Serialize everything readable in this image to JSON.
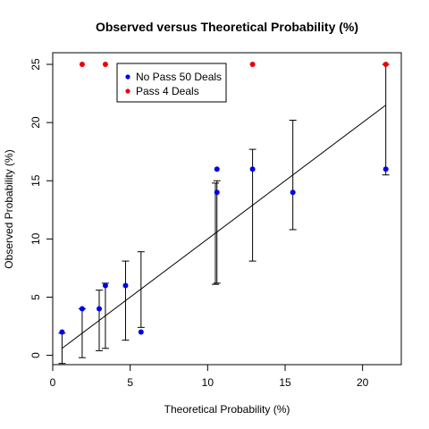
{
  "chart_data": {
    "type": "scatter",
    "title": "Observed versus Theoretical Probability (%)",
    "xlabel": "Theoretical Probability (%)",
    "ylabel": "Observed Probability (%)",
    "xlim": [
      0,
      22.5
    ],
    "ylim": [
      -0.8,
      26
    ],
    "xticks": [
      0,
      5,
      10,
      15,
      20
    ],
    "yticks": [
      0,
      5,
      10,
      15,
      20,
      25
    ],
    "grid": false,
    "legend": {
      "placement": "top-left",
      "entries": [
        {
          "name": "No Pass 50 Deals",
          "color": "#0000ee"
        },
        {
          "name": "Pass 4 Deals",
          "color": "#ee0000"
        }
      ]
    },
    "series": [
      {
        "name": "No Pass 50 Deals",
        "color": "#0000ee",
        "points": [
          {
            "x": 0.6,
            "y": 2
          },
          {
            "x": 1.9,
            "y": 4
          },
          {
            "x": 3.0,
            "y": 4
          },
          {
            "x": 3.4,
            "y": 6
          },
          {
            "x": 4.7,
            "y": 6
          },
          {
            "x": 5.7,
            "y": 2
          },
          {
            "x": 10.6,
            "y": 16
          },
          {
            "x": 10.6,
            "y": 14
          },
          {
            "x": 12.9,
            "y": 16
          },
          {
            "x": 15.5,
            "y": 14
          },
          {
            "x": 21.5,
            "y": 16
          }
        ]
      },
      {
        "name": "Pass 4 Deals",
        "color": "#ee0000",
        "points": [
          {
            "x": 1.9,
            "y": 25
          },
          {
            "x": 3.4,
            "y": 25
          },
          {
            "x": 12.9,
            "y": 25
          },
          {
            "x": 21.5,
            "y": 25
          }
        ]
      }
    ],
    "error_bars": [
      {
        "x": 0.6,
        "low": -0.7,
        "high": 1.9
      },
      {
        "x": 1.9,
        "low": -0.2,
        "high": 4.0
      },
      {
        "x": 3.0,
        "low": 0.4,
        "high": 5.6
      },
      {
        "x": 3.4,
        "low": 0.6,
        "high": 6.2
      },
      {
        "x": 4.7,
        "low": 1.3,
        "high": 8.1
      },
      {
        "x": 5.7,
        "low": 2.4,
        "high": 8.9
      },
      {
        "x": 10.5,
        "low": 6.1,
        "high": 14.8
      },
      {
        "x": 10.6,
        "low": 6.2,
        "high": 15.0
      },
      {
        "x": 12.9,
        "low": 8.1,
        "high": 17.7
      },
      {
        "x": 15.5,
        "low": 10.8,
        "high": 20.2
      },
      {
        "x": 21.5,
        "low": 15.5,
        "high": 25.0
      }
    ],
    "reference_line": {
      "x0": 0.6,
      "y0": 0.6,
      "x1": 21.5,
      "y1": 21.5
    }
  }
}
